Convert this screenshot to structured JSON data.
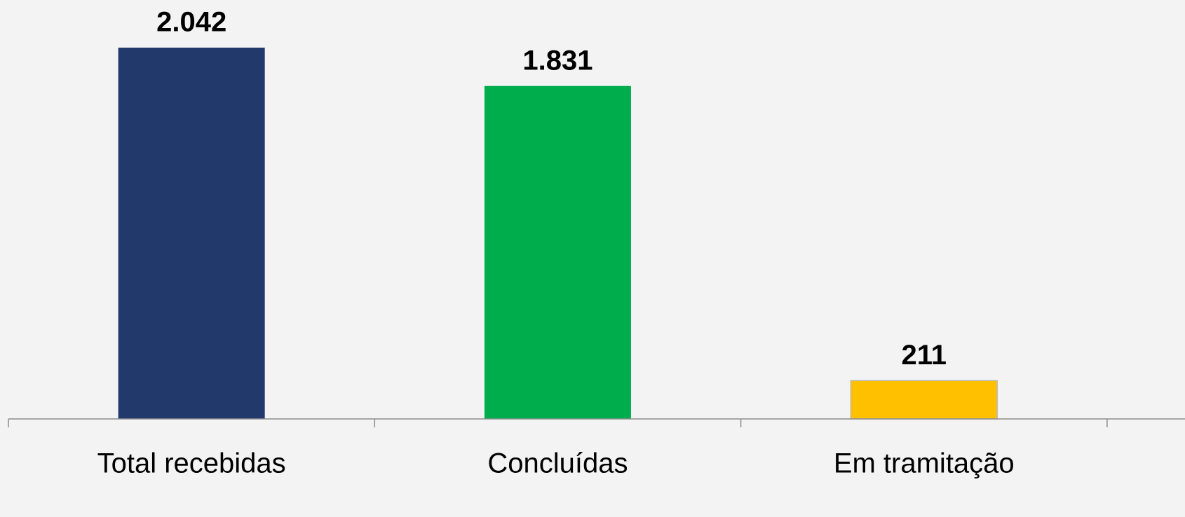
{
  "chart_data": {
    "type": "bar",
    "categories": [
      "Total recebidas",
      "Concluídas",
      "Em tramitação"
    ],
    "values": [
      2042,
      1831,
      211
    ],
    "value_labels": [
      "2.042",
      "1.831",
      "211"
    ],
    "colors": [
      "#223a6b",
      "#00ad4d",
      "#ffc000"
    ]
  }
}
